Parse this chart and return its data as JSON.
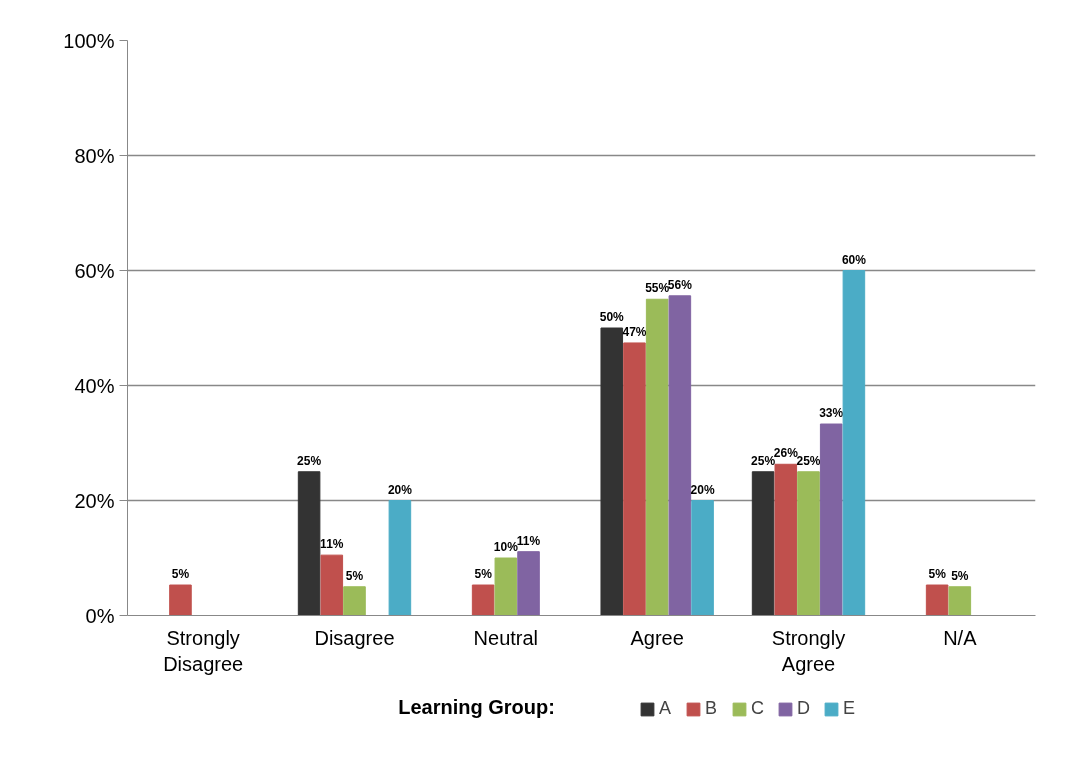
{
  "chart_data": {
    "type": "bar",
    "categories": [
      "Strongly Disagree",
      "Disagree",
      "Neutral",
      "Agree",
      "Strongly Agree",
      "N/A"
    ],
    "series": [
      {
        "name": "A",
        "color": "#333333",
        "values": [
          null,
          25,
          null,
          50,
          25,
          null
        ],
        "value_labels": [
          null,
          "25%",
          null,
          "50%",
          "25%",
          null
        ]
      },
      {
        "name": "B",
        "color": "#c0504d",
        "values": [
          5.3,
          10.5,
          5.3,
          47.4,
          26.3,
          5.3
        ],
        "value_labels": [
          "5%",
          "11%",
          "5%",
          "47%",
          "26%",
          "5%"
        ]
      },
      {
        "name": "C",
        "color": "#9bbb59",
        "values": [
          null,
          5,
          10,
          55,
          25,
          5
        ],
        "value_labels": [
          null,
          "5%",
          "10%",
          "55%",
          "25%",
          "5%"
        ]
      },
      {
        "name": "D",
        "color": "#8064a2",
        "values": [
          null,
          null,
          11.1,
          55.6,
          33.3,
          null
        ],
        "value_labels": [
          null,
          null,
          "11%",
          "56%",
          "33%",
          null
        ]
      },
      {
        "name": "E",
        "color": "#4bacc6",
        "values": [
          null,
          20,
          null,
          20,
          60,
          null
        ],
        "value_labels": [
          null,
          "20%",
          null,
          "20%",
          "60%",
          null
        ]
      }
    ],
    "ylim": [
      0,
      100
    ],
    "yticks": [
      {
        "value": 0,
        "label": "0%"
      },
      {
        "value": 20,
        "label": "20%"
      },
      {
        "value": 40,
        "label": "40%"
      },
      {
        "value": 60,
        "label": "60%"
      },
      {
        "value": 80,
        "label": "80%"
      },
      {
        "value": 100,
        "label": "100%"
      }
    ],
    "grid": "y",
    "legend": "bottom",
    "legend_title": "Learning Group:"
  }
}
